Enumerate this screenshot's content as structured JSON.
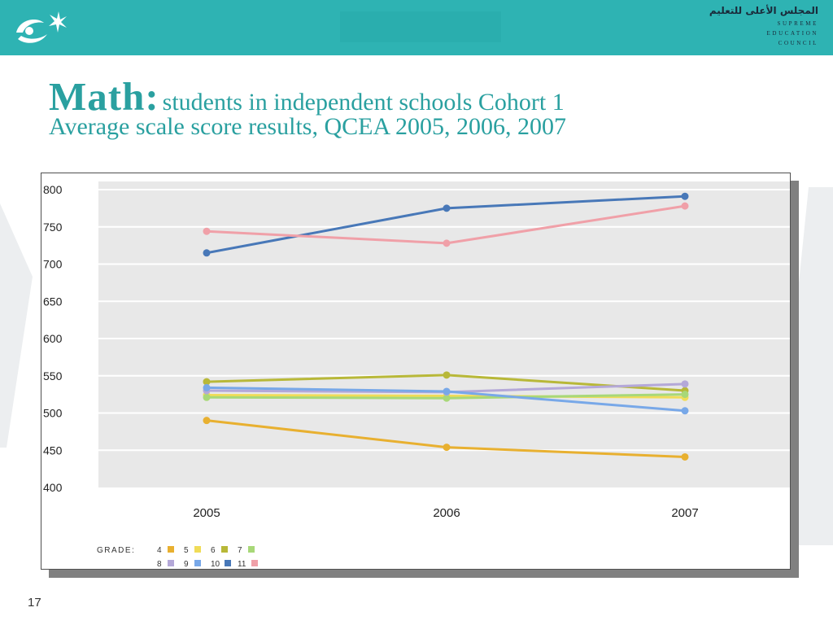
{
  "slide": {
    "brand_arabic": "المجلس الأعلى للتعليم",
    "brand_lines": [
      "SUPREME",
      "EDUCATION",
      "COUNCIL"
    ],
    "title_main": "Math:",
    "title_rest": "students in independent schools Cohort 1",
    "title_line2": "Average scale score results, QCEA 2005, 2006, 2007",
    "slide_number": "17",
    "colors": {
      "header": "#2eb3b3",
      "title": "#2aa0a0",
      "plot_bg": "#e8e8e8"
    }
  },
  "chart_data": {
    "type": "line",
    "title": "",
    "xlabel": "",
    "ylabel": "",
    "x": [
      "2005",
      "2006",
      "2007"
    ],
    "ylim": [
      400,
      800
    ],
    "yticks": [
      "400",
      "450",
      "500",
      "550",
      "600",
      "650",
      "700",
      "750",
      "800"
    ],
    "grid": true,
    "legend": {
      "placement": "bottom-left",
      "title": "GRADE:"
    },
    "series": [
      {
        "name": "4",
        "color": "#e8b030",
        "values": [
          490,
          454,
          441
        ]
      },
      {
        "name": "5",
        "color": "#f0dc58",
        "values": [
          524,
          523,
          521
        ]
      },
      {
        "name": "6",
        "color": "#b8b838",
        "values": [
          542,
          551,
          530
        ]
      },
      {
        "name": "7",
        "color": "#a8d878",
        "values": [
          521,
          520,
          525
        ]
      },
      {
        "name": "8",
        "color": "#b4a8d8",
        "values": [
          530,
          528,
          539
        ]
      },
      {
        "name": "9",
        "color": "#78a8e8",
        "values": [
          534,
          529,
          503
        ]
      },
      {
        "name": "10",
        "color": "#4878b8",
        "values": [
          715,
          775,
          791
        ]
      },
      {
        "name": "11",
        "color": "#f0a0a8",
        "values": [
          744,
          728,
          778
        ]
      }
    ]
  }
}
